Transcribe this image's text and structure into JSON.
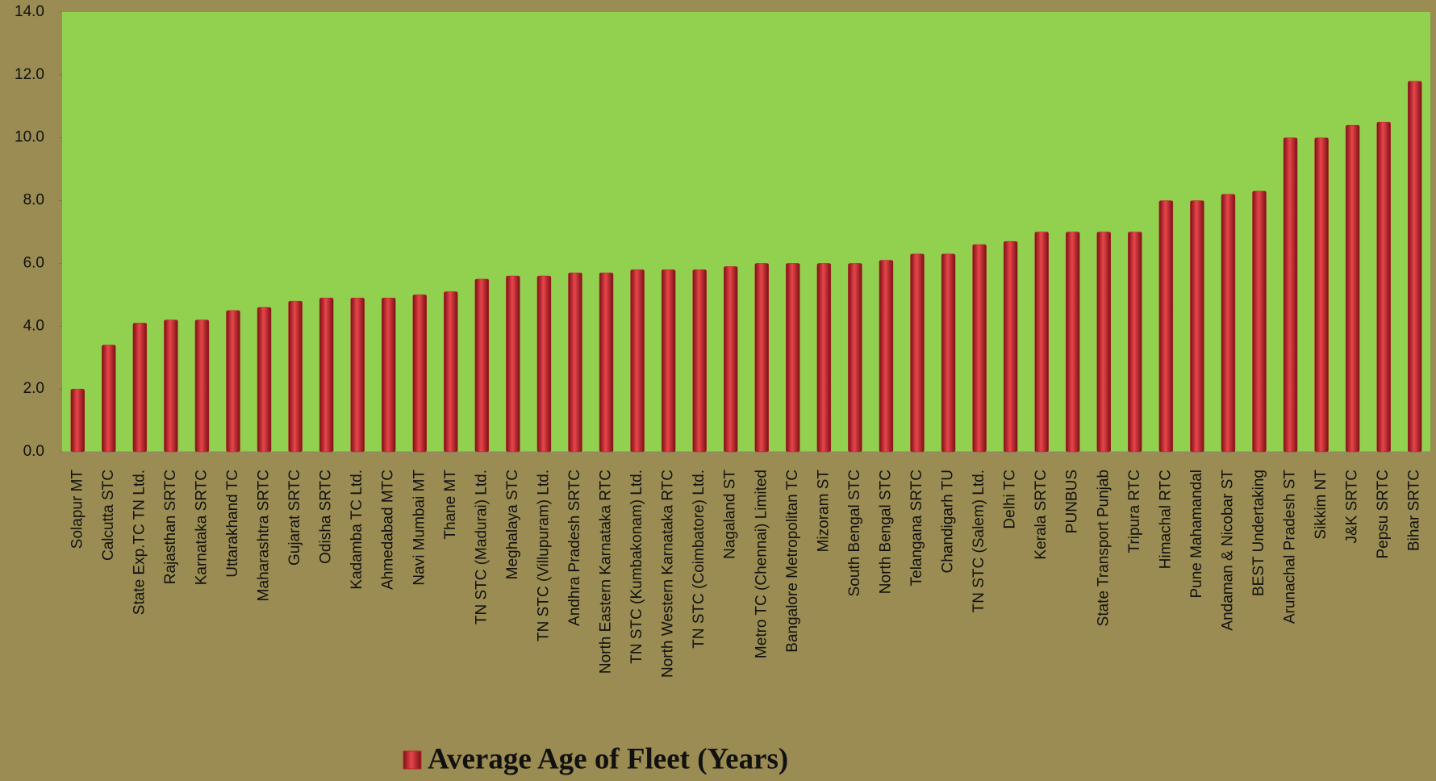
{
  "chart_data": {
    "type": "bar",
    "categories": [
      "Solapur MT",
      "Calcutta STC",
      "State Exp.TC TN Ltd.",
      "Rajasthan SRTC",
      "Karnataka SRTC",
      "Uttarakhand  TC",
      "Maharashtra SRTC",
      "Gujarat SRTC",
      "Odisha SRTC",
      "Kadamba TC Ltd.",
      "Ahmedabad MTC",
      "Navi Mumbai MT",
      "Thane MT",
      "TN STC (Madurai) Ltd.",
      "Meghalaya STC",
      "TN STC (Villupuram) Ltd.",
      "Andhra Pradesh SRTC",
      "North Eastern Karnataka RTC",
      "TN STC (Kumbakonam) Ltd.",
      "North Western Karnataka RTC",
      "TN STC (Coimbatore) Ltd.",
      "Nagaland ST",
      "Metro TC (Chennai) Limited",
      "Bangalore Metropolitan TC",
      "Mizoram ST",
      "South Bengal STC",
      "North Bengal STC",
      "Telangana SRTC",
      "Chandigarh TU",
      "TN STC (Salem) Ltd.",
      "Delhi TC",
      "Kerala SRTC",
      "PUNBUS",
      "State Transport Punjab",
      "Tripura RTC",
      "Himachal RTC",
      "Pune Mahamandal",
      "Andaman & Nicobar ST",
      "BEST Undertaking",
      "Arunachal Pradesh ST",
      "Sikkim NT",
      "J&K SRTC",
      "Pepsu SRTC",
      "Bihar SRTC"
    ],
    "series": [
      {
        "name": "Average Age of Fleet (Years)",
        "color": "#c0282d",
        "values": [
          2.0,
          3.4,
          4.1,
          4.2,
          4.2,
          4.5,
          4.6,
          4.8,
          4.9,
          4.9,
          4.9,
          5.0,
          5.1,
          5.5,
          5.6,
          5.6,
          5.7,
          5.7,
          5.8,
          5.8,
          5.8,
          5.9,
          6.0,
          6.0,
          6.0,
          6.0,
          6.1,
          6.3,
          6.3,
          6.6,
          6.7,
          7.0,
          7.0,
          7.0,
          7.0,
          8.0,
          8.0,
          8.2,
          8.3,
          10.0,
          10.0,
          10.4,
          10.5,
          11.8
        ]
      }
    ],
    "ylim": [
      0,
      14
    ],
    "yticks": [
      {
        "value": 0,
        "label": "0.0"
      },
      {
        "value": 2,
        "label": "2.0"
      },
      {
        "value": 4,
        "label": "4.0"
      },
      {
        "value": 6,
        "label": "6.0"
      },
      {
        "value": 8,
        "label": "8.0"
      },
      {
        "value": 10,
        "label": "10.0"
      },
      {
        "value": 12,
        "label": "12.0"
      },
      {
        "value": 14,
        "label": "14.0"
      }
    ]
  }
}
